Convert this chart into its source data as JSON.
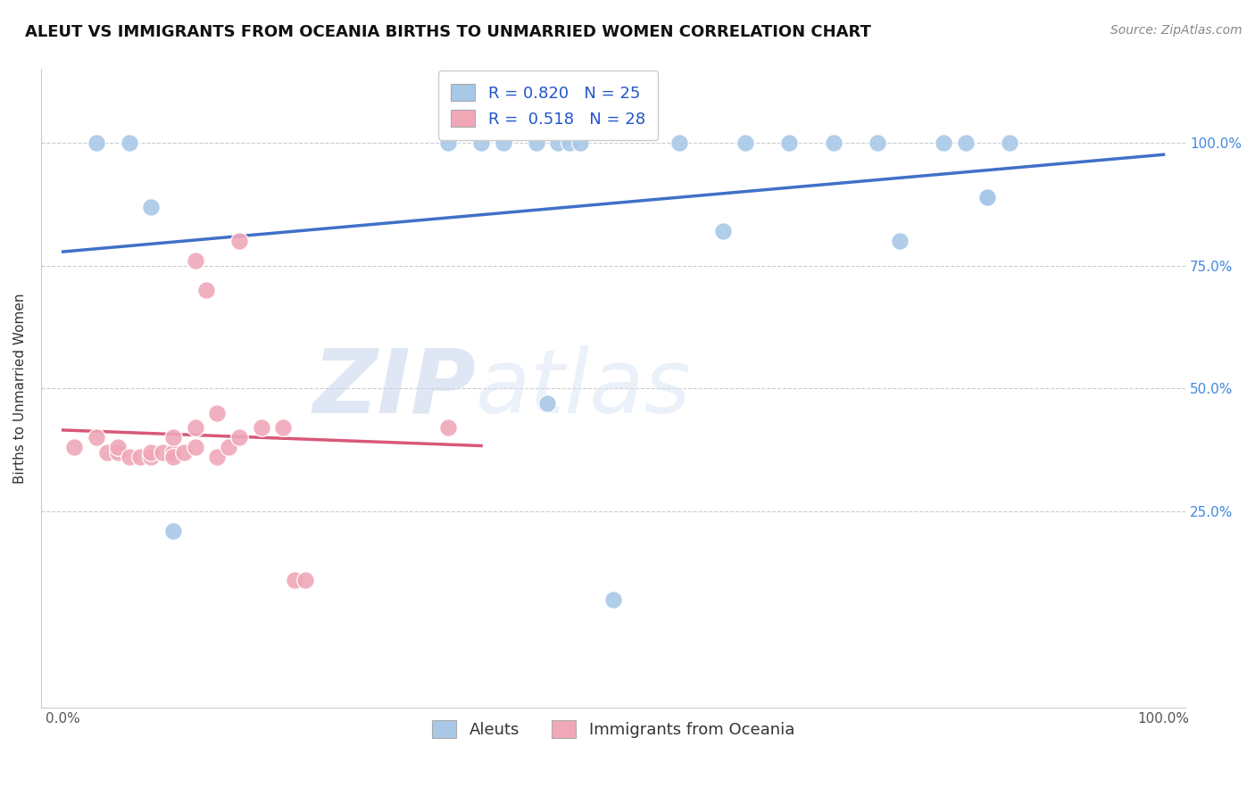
{
  "title": "ALEUT VS IMMIGRANTS FROM OCEANIA BIRTHS TO UNMARRIED WOMEN CORRELATION CHART",
  "source": "Source: ZipAtlas.com",
  "ylabel": "Births to Unmarried Women",
  "xlim": [
    -0.02,
    1.02
  ],
  "ylim": [
    -0.15,
    1.15
  ],
  "xtick_positions": [
    0,
    0.25,
    0.5,
    0.75,
    1.0
  ],
  "xticklabels": [
    "0.0%",
    "",
    "",
    "",
    "100.0%"
  ],
  "ytick_positions": [
    0.25,
    0.5,
    0.75,
    1.0
  ],
  "yticklabels": [
    "25.0%",
    "50.0%",
    "75.0%",
    "100.0%"
  ],
  "legend_labels": [
    "Aleuts",
    "Immigrants from Oceania"
  ],
  "R_blue": 0.82,
  "N_blue": 25,
  "R_pink": 0.518,
  "N_pink": 28,
  "blue_color": "#a8c8e8",
  "pink_color": "#f0a8b8",
  "blue_line_color": "#4070c8",
  "pink_line_color": "#d85878",
  "blue_x": [
    0.03,
    0.06,
    0.08,
    0.1,
    0.35,
    0.38,
    0.4,
    0.43,
    0.44,
    0.45,
    0.46,
    0.47,
    0.5,
    0.56,
    0.6,
    0.62,
    0.66,
    0.7,
    0.74,
    0.76,
    0.8,
    0.82,
    0.84,
    0.84,
    0.86
  ],
  "blue_y": [
    1.0,
    1.0,
    0.87,
    0.21,
    1.0,
    1.0,
    1.0,
    1.0,
    0.47,
    1.0,
    1.0,
    1.0,
    0.07,
    1.0,
    0.82,
    1.0,
    1.0,
    1.0,
    1.0,
    0.8,
    1.0,
    1.0,
    0.89,
    0.89,
    1.0
  ],
  "pink_x": [
    0.01,
    0.03,
    0.04,
    0.05,
    0.05,
    0.06,
    0.07,
    0.08,
    0.08,
    0.09,
    0.1,
    0.1,
    0.1,
    0.11,
    0.12,
    0.12,
    0.12,
    0.13,
    0.14,
    0.14,
    0.15,
    0.16,
    0.16,
    0.18,
    0.2,
    0.21,
    0.22,
    0.35
  ],
  "pink_y": [
    0.38,
    0.4,
    0.37,
    0.37,
    0.38,
    0.36,
    0.36,
    0.36,
    0.37,
    0.37,
    0.37,
    0.36,
    0.4,
    0.37,
    0.76,
    0.38,
    0.42,
    0.7,
    0.36,
    0.45,
    0.38,
    0.4,
    0.8,
    0.42,
    0.42,
    0.11,
    0.11,
    0.42
  ],
  "background_color": "#ffffff",
  "grid_color": "#cccccc",
  "title_fontsize": 13,
  "axis_label_fontsize": 11,
  "tick_fontsize": 11,
  "legend_fontsize": 13,
  "source_fontsize": 10
}
